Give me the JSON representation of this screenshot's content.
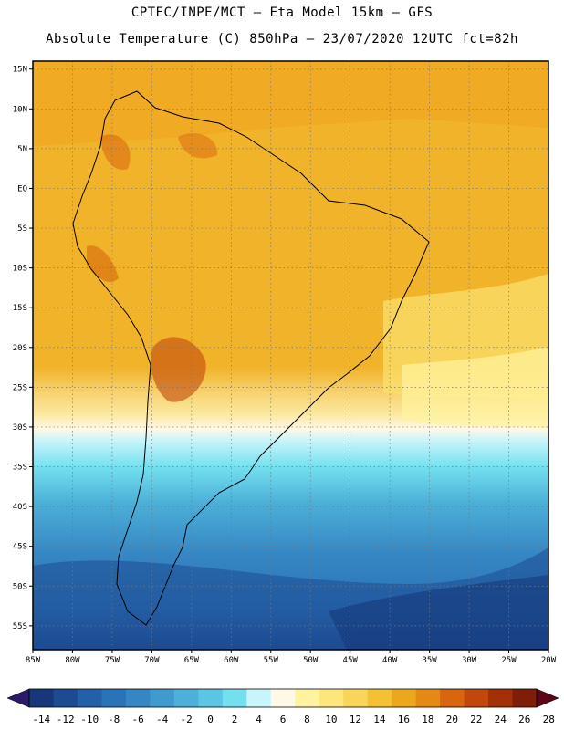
{
  "header": {
    "line1": "CPTEC/INPE/MCT –  Eta Model 15km – GFS",
    "line2": "Absolute Temperature (C) 850hPa – 23/07/2020 12UTC fct=82h"
  },
  "map": {
    "lon_range": [
      -85,
      -20
    ],
    "lat_range": [
      -58,
      16
    ],
    "lon_labels": [
      "85W",
      "80W",
      "75W",
      "70W",
      "65W",
      "60W",
      "55W",
      "50W",
      "45W",
      "40W",
      "35W",
      "30W",
      "25W",
      "20W"
    ],
    "lon_values": [
      -85,
      -80,
      -75,
      -70,
      -65,
      -60,
      -55,
      -50,
      -45,
      -40,
      -35,
      -30,
      -25,
      -20
    ],
    "lat_labels": [
      "15N",
      "10N",
      "5N",
      "EQ",
      "5S",
      "10S",
      "15S",
      "20S",
      "25S",
      "30S",
      "35S",
      "40S",
      "45S",
      "50S",
      "55S"
    ],
    "lat_values": [
      15,
      10,
      5,
      0,
      -5,
      -10,
      -15,
      -20,
      -25,
      -30,
      -35,
      -40,
      -45,
      -50,
      -55
    ]
  },
  "colorbar": {
    "tick_labels": [
      "-14",
      "-12",
      "-10",
      "-8",
      "-6",
      "-4",
      "-2",
      "0",
      "2",
      "4",
      "6",
      "8",
      "10",
      "12",
      "14",
      "16",
      "18",
      "20",
      "22",
      "24",
      "26",
      "28"
    ],
    "colors": [
      "#16387a",
      "#1d4b92",
      "#2460a8",
      "#2b73b8",
      "#3586c3",
      "#3f9bce",
      "#4cb0d8",
      "#5ac6e3",
      "#72e0ef",
      "#c8f4fb",
      "#fff8e6",
      "#fff3a0",
      "#fde77c",
      "#f9d65a",
      "#f4c132",
      "#eca81c",
      "#e38914",
      "#d9650e",
      "#c2470c",
      "#a4300a",
      "#7e1e08"
    ],
    "under_color": "#2b1a66",
    "over_color": "#5c0718"
  }
}
